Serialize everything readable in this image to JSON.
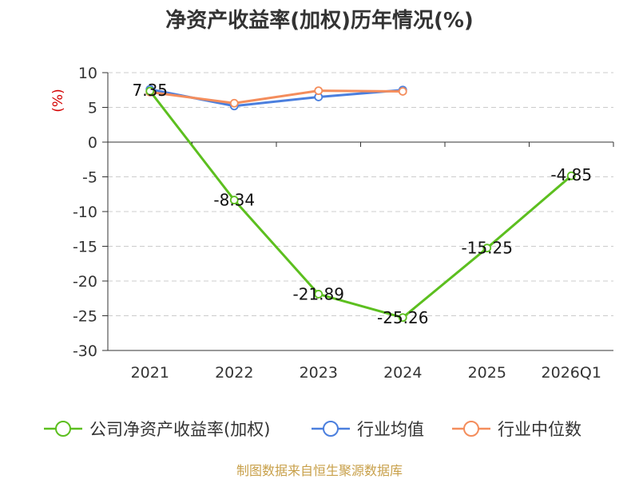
{
  "chart_data": {
    "type": "line",
    "title": "净资产收益率(加权)历年情况(%)",
    "ylabel": "(%)",
    "xlabel": "",
    "categories": [
      "2021",
      "2022",
      "2023",
      "2024",
      "2025",
      "2026Q1"
    ],
    "ylim": [
      -30,
      10
    ],
    "yticks": [
      10,
      5,
      0,
      -5,
      -10,
      -15,
      -20,
      -25,
      -30
    ],
    "grid": true,
    "legend_position": "bottom",
    "series": [
      {
        "name": "公司净资产收益率(加权)",
        "color": "#5cbf1f",
        "values": [
          7.35,
          -8.34,
          -21.89,
          -25.26,
          -15.25,
          -4.85
        ],
        "labels": [
          "7.35",
          "-8.34",
          "-21.89",
          "-25.26",
          "-15.25",
          "-4.85"
        ]
      },
      {
        "name": "行业均值",
        "color": "#4b7fde",
        "values": [
          7.6,
          5.2,
          6.5,
          7.5,
          null,
          null
        ]
      },
      {
        "name": "行业中位数",
        "color": "#f48d5c",
        "values": [
          7.2,
          5.6,
          7.4,
          7.3,
          null,
          null
        ]
      }
    ],
    "source": "制图数据来自恒生聚源数据库"
  }
}
